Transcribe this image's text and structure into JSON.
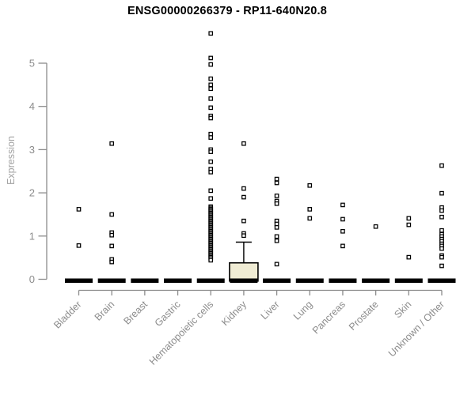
{
  "chart_data": {
    "type": "scatter",
    "subtype": "per-category expression strip plot with collapsed boxplots at zero",
    "title": "ENSG00000266379 - RP11-640N20.8",
    "xlabel": "",
    "ylabel": "Expression",
    "ylim": [
      0,
      5.8
    ],
    "yticks": [
      0,
      1,
      2,
      3,
      4,
      5
    ],
    "grid": false,
    "legend": false,
    "categories": [
      "Bladder",
      "Brain",
      "Breast",
      "Gastric",
      "Hematopoietic cells",
      "Kidney",
      "Liver",
      "Lung",
      "Pancreas",
      "Prostate",
      "Skin",
      "Unknown / Other"
    ],
    "zero_value_bars": true,
    "series": [
      {
        "name": "Bladder",
        "values": [
          1.62,
          0.78
        ]
      },
      {
        "name": "Brain",
        "values": [
          3.14,
          1.5,
          1.08,
          1.02,
          0.77,
          0.46,
          0.4
        ]
      },
      {
        "name": "Breast",
        "values": []
      },
      {
        "name": "Gastric",
        "values": []
      },
      {
        "name": "Hematopoietic cells",
        "values": [
          5.69,
          5.12,
          4.97,
          4.64,
          4.5,
          4.41,
          4.18,
          3.97,
          3.78,
          3.73,
          3.36,
          3.28,
          3.0,
          2.95,
          2.72,
          2.55,
          2.48,
          2.05,
          1.87,
          1.68,
          1.65,
          1.62,
          1.59,
          1.56,
          1.53,
          1.5,
          1.47,
          1.44,
          1.41,
          1.38,
          1.35,
          1.32,
          1.29,
          1.26,
          1.23,
          1.2,
          1.17,
          1.14,
          1.11,
          1.08,
          1.05,
          1.02,
          0.99,
          0.96,
          0.93,
          0.9,
          0.87,
          0.84,
          0.81,
          0.78,
          0.75,
          0.72,
          0.69,
          0.66,
          0.63,
          0.6,
          0.57,
          0.54,
          0.51,
          0.48,
          0.44
        ]
      },
      {
        "name": "Kidney",
        "values": [
          3.14,
          2.1,
          1.9,
          1.35,
          1.06,
          1.01
        ]
      },
      {
        "name": "Liver",
        "values": [
          2.32,
          2.23,
          1.93,
          1.81,
          1.75,
          1.35,
          1.28,
          1.2,
          0.99,
          0.89,
          0.35
        ]
      },
      {
        "name": "Lung",
        "values": [
          2.17,
          1.62,
          1.41
        ]
      },
      {
        "name": "Pancreas",
        "values": [
          1.72,
          1.39,
          1.11,
          0.77
        ]
      },
      {
        "name": "Prostate",
        "values": [
          1.22
        ]
      },
      {
        "name": "Skin",
        "values": [
          1.41,
          1.26,
          0.51
        ]
      },
      {
        "name": "Unknown / Other",
        "values": [
          2.63,
          1.99,
          1.66,
          1.59,
          1.44,
          1.13,
          1.04,
          0.99,
          0.93,
          0.88,
          0.82,
          0.77,
          0.71,
          0.55,
          0.51,
          0.31
        ]
      }
    ],
    "boxes": [
      {
        "category": "Kidney",
        "q1": 0,
        "median": 0,
        "q3": 0.38,
        "whisker_high": 0.86
      }
    ],
    "colors": {
      "point": "#000000",
      "axis": "#8c8c8c",
      "tick_label": "#8c8c8c",
      "axis_title": "#a3a3a3",
      "title": "#000000",
      "box_fill": "#f0ecd4",
      "box_border": "#000000",
      "zero_bar": "#000000",
      "background": "#ffffff"
    }
  }
}
